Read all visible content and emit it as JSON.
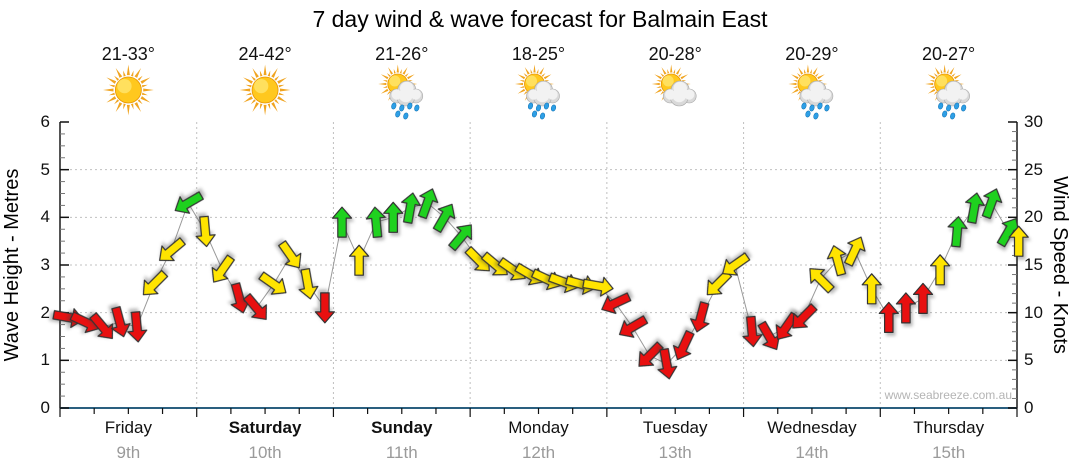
{
  "title": "7 day wind & wave forecast for Balmain East",
  "watermark": "www.seabreeze.com.au",
  "axes": {
    "left_title": "Wave Height - Metres",
    "right_title": "Wind Speed - Knots",
    "left_ticks": [
      "0",
      "1",
      "2",
      "3",
      "4",
      "5",
      "6"
    ],
    "right_ticks": [
      "0",
      "5",
      "10",
      "15",
      "20",
      "25",
      "30"
    ],
    "left_range": [
      0,
      6
    ],
    "right_range": [
      0,
      30
    ]
  },
  "days": [
    {
      "name": "Friday",
      "date": "9th",
      "temp": "21-33°",
      "icon": "sunny",
      "bold": false
    },
    {
      "name": "Saturday",
      "date": "10th",
      "temp": "24-42°",
      "icon": "sunny",
      "bold": true
    },
    {
      "name": "Sunday",
      "date": "11th",
      "temp": "21-26°",
      "icon": "sun-showers",
      "bold": true
    },
    {
      "name": "Monday",
      "date": "12th",
      "temp": "18-25°",
      "icon": "sun-showers",
      "bold": false
    },
    {
      "name": "Tuesday",
      "date": "13th",
      "temp": "20-28°",
      "icon": "sun-cloud",
      "bold": false
    },
    {
      "name": "Wednesday",
      "date": "14th",
      "temp": "20-29°",
      "icon": "sun-showers",
      "bold": false
    },
    {
      "name": "Thursday",
      "date": "15th",
      "temp": "20-27°",
      "icon": "sun-showers",
      "bold": false
    }
  ],
  "colors": {
    "arrow_red": "#e81010",
    "arrow_yellow": "#ffe400",
    "arrow_green": "#1fd11f",
    "arrow_outline": "#333333",
    "grid": "#c0c0c0",
    "axis_left_right": "#1a1a1a",
    "axis_bottom": "#2a5f7f",
    "connector": "#999999",
    "date_text": "#9a9a9a",
    "watermark_text": "#b4b4b4"
  },
  "chart_data": {
    "type": "wind-arrows-timeseries",
    "note": "Wind speed in knots (right axis); arrow rotation = wind direction (0 = pointing up); 8 slots of 3 h per day",
    "ylabel_left": "Wave Height - Metres",
    "ylabel_right": "Wind Speed - Knots",
    "ylim_left": [
      0,
      6
    ],
    "ylim_right": [
      0,
      30
    ],
    "categories": [
      "Friday 9th",
      "Saturday 10th",
      "Sunday 11th",
      "Monday 12th",
      "Tuesday 13th",
      "Wednesday 14th",
      "Thursday 15th"
    ],
    "arrows": [
      {
        "d": 0,
        "s": 0,
        "kn": 9.5,
        "dir": 100,
        "c": "red"
      },
      {
        "d": 0,
        "s": 1,
        "kn": 9.0,
        "dir": 115,
        "c": "red"
      },
      {
        "d": 0,
        "s": 2,
        "kn": 8.5,
        "dir": 140,
        "c": "red"
      },
      {
        "d": 0,
        "s": 3,
        "kn": 9.0,
        "dir": 165,
        "c": "red"
      },
      {
        "d": 0,
        "s": 4,
        "kn": 8.5,
        "dir": 175,
        "c": "red"
      },
      {
        "d": 0,
        "s": 5,
        "kn": 13.0,
        "dir": 225,
        "c": "yellow"
      },
      {
        "d": 0,
        "s": 6,
        "kn": 16.5,
        "dir": 230,
        "c": "yellow"
      },
      {
        "d": 0,
        "s": 7,
        "kn": 21.5,
        "dir": 240,
        "c": "green"
      },
      {
        "d": 1,
        "s": 0,
        "kn": 18.5,
        "dir": 175,
        "c": "yellow"
      },
      {
        "d": 1,
        "s": 1,
        "kn": 14.5,
        "dir": 215,
        "c": "yellow"
      },
      {
        "d": 1,
        "s": 2,
        "kn": 11.5,
        "dir": 165,
        "c": "red"
      },
      {
        "d": 1,
        "s": 3,
        "kn": 10.5,
        "dir": 140,
        "c": "red"
      },
      {
        "d": 1,
        "s": 4,
        "kn": 13.0,
        "dir": 125,
        "c": "yellow"
      },
      {
        "d": 1,
        "s": 5,
        "kn": 16.0,
        "dir": 145,
        "c": "yellow"
      },
      {
        "d": 1,
        "s": 6,
        "kn": 13.0,
        "dir": 170,
        "c": "yellow"
      },
      {
        "d": 1,
        "s": 7,
        "kn": 10.5,
        "dir": 180,
        "c": "red"
      },
      {
        "d": 2,
        "s": 0,
        "kn": 19.5,
        "dir": 0,
        "c": "green"
      },
      {
        "d": 2,
        "s": 1,
        "kn": 15.5,
        "dir": 0,
        "c": "yellow"
      },
      {
        "d": 2,
        "s": 2,
        "kn": 19.5,
        "dir": 355,
        "c": "green"
      },
      {
        "d": 2,
        "s": 3,
        "kn": 20.0,
        "dir": 0,
        "c": "green"
      },
      {
        "d": 2,
        "s": 4,
        "kn": 21.0,
        "dir": 10,
        "c": "green"
      },
      {
        "d": 2,
        "s": 5,
        "kn": 21.5,
        "dir": 20,
        "c": "green"
      },
      {
        "d": 2,
        "s": 6,
        "kn": 20.0,
        "dir": 30,
        "c": "green"
      },
      {
        "d": 2,
        "s": 7,
        "kn": 18.0,
        "dir": 40,
        "c": "green"
      },
      {
        "d": 3,
        "s": 0,
        "kn": 15.5,
        "dir": 135,
        "c": "yellow"
      },
      {
        "d": 3,
        "s": 1,
        "kn": 15.0,
        "dir": 130,
        "c": "yellow"
      },
      {
        "d": 3,
        "s": 2,
        "kn": 14.5,
        "dir": 125,
        "c": "yellow"
      },
      {
        "d": 3,
        "s": 3,
        "kn": 14.0,
        "dir": 120,
        "c": "yellow"
      },
      {
        "d": 3,
        "s": 4,
        "kn": 13.5,
        "dir": 115,
        "c": "yellow"
      },
      {
        "d": 3,
        "s": 5,
        "kn": 13.2,
        "dir": 110,
        "c": "yellow"
      },
      {
        "d": 3,
        "s": 6,
        "kn": 13.0,
        "dir": 105,
        "c": "yellow"
      },
      {
        "d": 3,
        "s": 7,
        "kn": 12.8,
        "dir": 100,
        "c": "yellow"
      },
      {
        "d": 4,
        "s": 0,
        "kn": 11.0,
        "dir": 245,
        "c": "red"
      },
      {
        "d": 4,
        "s": 1,
        "kn": 8.5,
        "dir": 240,
        "c": "red"
      },
      {
        "d": 4,
        "s": 2,
        "kn": 5.5,
        "dir": 225,
        "c": "red"
      },
      {
        "d": 4,
        "s": 3,
        "kn": 4.6,
        "dir": 170,
        "c": "red"
      },
      {
        "d": 4,
        "s": 4,
        "kn": 6.5,
        "dir": 205,
        "c": "red"
      },
      {
        "d": 4,
        "s": 5,
        "kn": 9.5,
        "dir": 195,
        "c": "red"
      },
      {
        "d": 4,
        "s": 6,
        "kn": 13.0,
        "dir": 225,
        "c": "yellow"
      },
      {
        "d": 4,
        "s": 7,
        "kn": 15.0,
        "dir": 235,
        "c": "yellow"
      },
      {
        "d": 5,
        "s": 0,
        "kn": 8.0,
        "dir": 175,
        "c": "red"
      },
      {
        "d": 5,
        "s": 1,
        "kn": 7.5,
        "dir": 150,
        "c": "red"
      },
      {
        "d": 5,
        "s": 2,
        "kn": 8.5,
        "dir": 215,
        "c": "red"
      },
      {
        "d": 5,
        "s": 3,
        "kn": 9.5,
        "dir": 225,
        "c": "red"
      },
      {
        "d": 5,
        "s": 4,
        "kn": 13.5,
        "dir": 315,
        "c": "yellow"
      },
      {
        "d": 5,
        "s": 5,
        "kn": 15.5,
        "dir": 345,
        "c": "yellow"
      },
      {
        "d": 5,
        "s": 6,
        "kn": 16.5,
        "dir": 25,
        "c": "yellow"
      },
      {
        "d": 5,
        "s": 7,
        "kn": 12.5,
        "dir": 0,
        "c": "yellow"
      },
      {
        "d": 6,
        "s": 0,
        "kn": 9.5,
        "dir": 0,
        "c": "red"
      },
      {
        "d": 6,
        "s": 1,
        "kn": 10.5,
        "dir": 0,
        "c": "red"
      },
      {
        "d": 6,
        "s": 2,
        "kn": 11.5,
        "dir": 0,
        "c": "red"
      },
      {
        "d": 6,
        "s": 3,
        "kn": 14.5,
        "dir": 0,
        "c": "yellow"
      },
      {
        "d": 6,
        "s": 4,
        "kn": 18.5,
        "dir": 5,
        "c": "green"
      },
      {
        "d": 6,
        "s": 5,
        "kn": 21.0,
        "dir": 10,
        "c": "green"
      },
      {
        "d": 6,
        "s": 6,
        "kn": 21.5,
        "dir": 20,
        "c": "green"
      },
      {
        "d": 6,
        "s": 7,
        "kn": 18.5,
        "dir": 30,
        "c": "green"
      },
      {
        "d": 6,
        "s": 7.6,
        "kn": 17.5,
        "dir": 0,
        "c": "yellow"
      }
    ]
  }
}
